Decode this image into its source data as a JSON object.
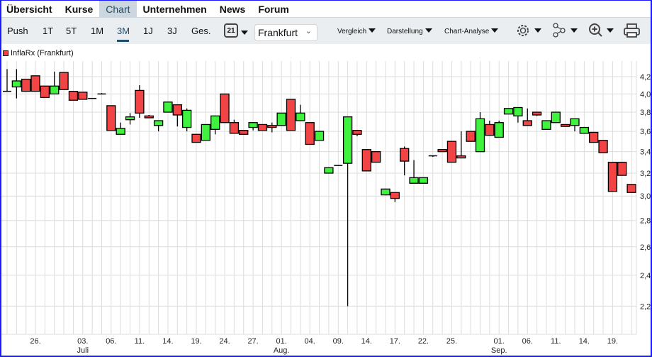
{
  "nav": {
    "tabs": [
      "Übersicht",
      "Kurse",
      "Chart",
      "Unternehmen",
      "News",
      "Forum"
    ],
    "active": "Chart"
  },
  "toolbar": {
    "ranges": [
      "Push",
      "1T",
      "5T",
      "1M",
      "3M",
      "1J",
      "3J",
      "Ges."
    ],
    "active_range": "3M",
    "calendar_day": "21",
    "exchange": "Frankfurt",
    "menus": [
      "Vergleich",
      "Darstellung",
      "Chart-Analyse"
    ],
    "icons": [
      "gear-icon",
      "share-nodes-icon",
      "zoom-in-icon",
      "print-icon"
    ]
  },
  "legend": {
    "label": "InflaRx (Frankfurt)",
    "color": "#f04040"
  },
  "colors": {
    "up": "#3ef23e",
    "down": "#f24444",
    "grid": "#dcdcdc",
    "border": "#1a1aff"
  },
  "chart_data": {
    "type": "candlestick",
    "y_scale": "log",
    "ylim": [
      2.15,
      4.32
    ],
    "grid": true,
    "legend": "top-left",
    "yticks": [
      "2,2",
      "2,4",
      "2,6",
      "2,8",
      "3,0",
      "3,2",
      "3,4",
      "3,6",
      "3,8",
      "4,0",
      "4,2"
    ],
    "xticks": [
      {
        "i": 3,
        "label": "26."
      },
      {
        "i": 8,
        "label": "03.",
        "sub": "Juli"
      },
      {
        "i": 11,
        "label": "06."
      },
      {
        "i": 14,
        "label": "11."
      },
      {
        "i": 17,
        "label": "14."
      },
      {
        "i": 20,
        "label": "19."
      },
      {
        "i": 23,
        "label": "24."
      },
      {
        "i": 26,
        "label": "27."
      },
      {
        "i": 29,
        "label": "01.",
        "sub": "Aug."
      },
      {
        "i": 32,
        "label": "04."
      },
      {
        "i": 35,
        "label": "09."
      },
      {
        "i": 38,
        "label": "14."
      },
      {
        "i": 41,
        "label": "17."
      },
      {
        "i": 44,
        "label": "22."
      },
      {
        "i": 47,
        "label": "25."
      },
      {
        "i": 52,
        "label": "01.",
        "sub": "Sep."
      },
      {
        "i": 55,
        "label": "06."
      },
      {
        "i": 58,
        "label": "11."
      },
      {
        "i": 61,
        "label": "14."
      },
      {
        "i": 64,
        "label": "19."
      }
    ],
    "ohlc": [
      [
        4.03,
        4.29,
        4.03,
        4.03
      ],
      [
        4.08,
        4.29,
        3.95,
        4.15
      ],
      [
        4.17,
        4.17,
        4.03,
        4.03
      ],
      [
        4.21,
        4.21,
        4.03,
        4.03
      ],
      [
        4.09,
        4.09,
        3.96,
        3.96
      ],
      [
        4.0,
        4.26,
        4.0,
        4.09
      ],
      [
        4.25,
        4.25,
        4.05,
        4.05
      ],
      [
        4.03,
        4.03,
        3.93,
        3.93
      ],
      [
        4.02,
        4.02,
        3.94,
        3.94
      ],
      [
        3.95,
        3.95,
        3.95,
        3.95
      ],
      [
        4.0,
        4.01,
        4.0,
        4.0
      ],
      [
        3.87,
        3.87,
        3.61,
        3.61
      ],
      [
        3.57,
        3.69,
        3.57,
        3.63
      ],
      [
        3.72,
        3.79,
        3.67,
        3.75
      ],
      [
        4.04,
        4.1,
        3.74,
        3.79
      ],
      [
        3.76,
        3.77,
        3.74,
        3.74
      ],
      [
        3.66,
        3.71,
        3.6,
        3.71
      ],
      [
        3.8,
        3.91,
        3.8,
        3.91
      ],
      [
        3.88,
        3.88,
        3.65,
        3.77
      ],
      [
        3.64,
        3.84,
        3.6,
        3.82
      ],
      [
        3.57,
        3.57,
        3.49,
        3.49
      ],
      [
        3.51,
        3.67,
        3.51,
        3.67
      ],
      [
        3.62,
        3.76,
        3.57,
        3.76
      ],
      [
        4.0,
        4.0,
        3.69,
        3.69
      ],
      [
        3.69,
        3.72,
        3.58,
        3.58
      ],
      [
        3.61,
        3.61,
        3.57,
        3.57
      ],
      [
        3.64,
        3.69,
        3.61,
        3.69
      ],
      [
        3.67,
        3.67,
        3.61,
        3.61
      ],
      [
        3.66,
        3.69,
        3.59,
        3.64
      ],
      [
        3.66,
        3.79,
        3.66,
        3.79
      ],
      [
        3.94,
        3.94,
        3.61,
        3.61
      ],
      [
        3.71,
        3.88,
        3.71,
        3.79
      ],
      [
        3.69,
        3.69,
        3.47,
        3.47
      ],
      [
        3.51,
        3.6,
        3.51,
        3.6
      ],
      [
        3.2,
        3.25,
        3.2,
        3.25
      ],
      [
        3.27,
        3.27,
        3.27,
        3.27
      ],
      [
        3.29,
        3.75,
        2.2,
        3.75
      ],
      [
        3.61,
        3.61,
        3.55,
        3.57
      ],
      [
        3.42,
        3.42,
        3.22,
        3.22
      ],
      [
        3.4,
        3.4,
        3.3,
        3.3
      ],
      [
        3.01,
        3.06,
        3.01,
        3.06
      ],
      [
        3.03,
        3.03,
        2.95,
        2.98
      ],
      [
        3.43,
        3.45,
        3.18,
        3.31
      ],
      [
        3.11,
        3.32,
        3.11,
        3.16
      ],
      [
        3.11,
        3.16,
        3.11,
        3.16
      ],
      [
        3.35,
        3.36,
        3.35,
        3.36
      ],
      [
        3.42,
        3.42,
        3.4,
        3.4
      ],
      [
        3.5,
        3.5,
        3.3,
        3.3
      ],
      [
        3.36,
        3.6,
        3.34,
        3.34
      ],
      [
        3.6,
        3.6,
        3.5,
        3.5
      ],
      [
        3.4,
        3.8,
        3.4,
        3.73
      ],
      [
        3.67,
        3.71,
        3.56,
        3.56
      ],
      [
        3.54,
        3.71,
        3.54,
        3.69
      ],
      [
        3.78,
        3.84,
        3.78,
        3.84
      ],
      [
        3.76,
        3.85,
        3.69,
        3.85
      ],
      [
        3.71,
        3.84,
        3.66,
        3.66
      ],
      [
        3.8,
        3.8,
        3.76,
        3.77
      ],
      [
        3.62,
        3.71,
        3.62,
        3.71
      ],
      [
        3.69,
        3.8,
        3.69,
        3.8
      ],
      [
        3.67,
        3.67,
        3.65,
        3.65
      ],
      [
        3.66,
        3.73,
        3.6,
        3.73
      ],
      [
        3.58,
        3.64,
        3.58,
        3.64
      ],
      [
        3.59,
        3.59,
        3.49,
        3.49
      ],
      [
        3.51,
        3.51,
        3.39,
        3.39
      ],
      [
        3.3,
        3.3,
        3.04,
        3.04
      ],
      [
        3.3,
        3.3,
        3.18,
        3.18
      ],
      [
        3.1,
        3.1,
        3.03,
        3.03
      ]
    ]
  }
}
